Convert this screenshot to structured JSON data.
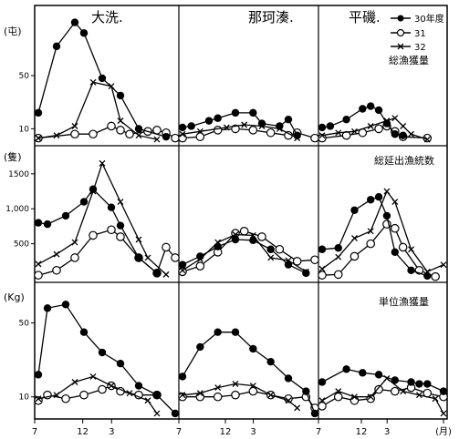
{
  "chart_data": {
    "type": "line",
    "legend": {
      "placement": "top-right",
      "entries": [
        {
          "marker": "filled-circle",
          "style": "solid",
          "label": "30年度"
        },
        {
          "marker": "open-circle",
          "style": "solid",
          "label": "31"
        },
        {
          "marker": "cross",
          "style": "solid",
          "label": "32"
        }
      ]
    },
    "regions": [
      "大洗.",
      "那珂湊.",
      "平磯."
    ],
    "x_ticks": [
      "7",
      "12",
      "3",
      "7",
      "12",
      "3",
      "7",
      "12",
      "3",
      "(月)"
    ],
    "panels": [
      {
        "unit": "(屯)",
        "title": "総漁獲量",
        "y_ticks": [
          {
            "v": 50,
            "label": "50"
          },
          {
            "v": 10,
            "label": "10"
          }
        ],
        "ylim": [
          0,
          100
        ],
        "segments": [
          {
            "s30": [
              [
                0,
                22
              ],
              [
                2,
                72
              ],
              [
                4,
                90
              ],
              [
                5,
                82
              ],
              [
                7,
                48
              ],
              [
                9,
                35
              ],
              [
                11,
                10
              ],
              [
                14,
                4
              ]
            ],
            "s31": [
              [
                0,
                3
              ],
              [
                4,
                6
              ],
              [
                6,
                6
              ],
              [
                8,
                12
              ],
              [
                9,
                9
              ],
              [
                10,
                6
              ],
              [
                12,
                8
              ],
              [
                13,
                9
              ],
              [
                14,
                7
              ],
              [
                15,
                3
              ]
            ],
            "s32": [
              [
                0,
                3
              ],
              [
                2,
                5
              ],
              [
                4,
                12
              ],
              [
                6,
                45
              ],
              [
                8,
                42
              ],
              [
                9,
                16
              ],
              [
                11,
                5
              ],
              [
                13,
                2
              ]
            ]
          },
          {
            "s30": [
              [
                0,
                11
              ],
              [
                1,
                12
              ],
              [
                3,
                16
              ],
              [
                4,
                18
              ],
              [
                6,
                22
              ],
              [
                8,
                22
              ],
              [
                9,
                14
              ],
              [
                11,
                12
              ],
              [
                12,
                17
              ],
              [
                13,
                5
              ]
            ],
            "s31": [
              [
                0,
                3
              ],
              [
                2,
                4
              ],
              [
                4,
                9
              ],
              [
                6,
                10
              ],
              [
                8,
                9
              ],
              [
                10,
                7
              ],
              [
                12,
                5
              ],
              [
                13,
                7
              ],
              [
                15,
                3
              ]
            ],
            "s32": [
              [
                0,
                6
              ],
              [
                2,
                8
              ],
              [
                5,
                11
              ],
              [
                7,
                13
              ],
              [
                9,
                12
              ],
              [
                11,
                10
              ],
              [
                13,
                3
              ]
            ]
          },
          {
            "s30": [
              [
                0,
                11
              ],
              [
                1,
                12
              ],
              [
                3,
                17
              ],
              [
                5,
                25
              ],
              [
                6,
                27
              ],
              [
                7,
                24
              ],
              [
                8,
                14
              ],
              [
                9,
                6
              ],
              [
                10,
                5
              ]
            ],
            "s31": [
              [
                0,
                3
              ],
              [
                3,
                5
              ],
              [
                5,
                7
              ],
              [
                7,
                10
              ],
              [
                8,
                12
              ],
              [
                9,
                8
              ],
              [
                10,
                4
              ],
              [
                13,
                3
              ]
            ],
            "s32": [
              [
                0,
                5
              ],
              [
                2,
                7
              ],
              [
                4,
                8
              ],
              [
                6,
                12
              ],
              [
                8,
                16
              ],
              [
                9,
                18
              ],
              [
                10,
                12
              ],
              [
                11,
                6
              ],
              [
                13,
                2
              ]
            ]
          }
        ]
      },
      {
        "unit": "(隻)",
        "title": "総延出漁統数",
        "y_ticks": [
          {
            "v": 1500,
            "label": "1500"
          },
          {
            "v": 1000,
            "label": "1,000"
          },
          {
            "v": 500,
            "label": "500"
          }
        ],
        "ylim": [
          0,
          1850
        ],
        "segments": [
          {
            "s30": [
              [
                0,
                800
              ],
              [
                1,
                780
              ],
              [
                3,
                900
              ],
              [
                5,
                1100
              ],
              [
                6,
                1280
              ],
              [
                8,
                1020
              ],
              [
                9,
                760
              ],
              [
                11,
                300
              ],
              [
                13,
                80
              ]
            ],
            "s31": [
              [
                0,
                50
              ],
              [
                2,
                120
              ],
              [
                4,
                300
              ],
              [
                6,
                620
              ],
              [
                8,
                700
              ],
              [
                9,
                600
              ],
              [
                11,
                300
              ],
              [
                13,
                80
              ],
              [
                14,
                450
              ],
              [
                15,
                300
              ]
            ],
            "s32": [
              [
                0,
                210
              ],
              [
                2,
                350
              ],
              [
                4,
                520
              ],
              [
                6,
                1250
              ],
              [
                7,
                1650
              ],
              [
                9,
                1100
              ],
              [
                11,
                560
              ],
              [
                12,
                300
              ],
              [
                14,
                60
              ]
            ]
          },
          {
            "s30": [
              [
                0,
                200
              ],
              [
                2,
                320
              ],
              [
                4,
                460
              ],
              [
                6,
                560
              ],
              [
                8,
                550
              ],
              [
                10,
                420
              ],
              [
                12,
                200
              ],
              [
                14,
                80
              ]
            ],
            "s31": [
              [
                0,
                100
              ],
              [
                2,
                180
              ],
              [
                4,
                380
              ],
              [
                6,
                650
              ],
              [
                7,
                680
              ],
              [
                9,
                600
              ],
              [
                11,
                420
              ],
              [
                13,
                250
              ],
              [
                15,
                270
              ]
            ],
            "s32": [
              [
                0,
                120
              ],
              [
                2,
                280
              ],
              [
                4,
                520
              ],
              [
                6,
                630
              ],
              [
                8,
                620
              ],
              [
                10,
                300
              ],
              [
                12,
                260
              ],
              [
                14,
                100
              ]
            ]
          },
          {
            "s30": [
              [
                0,
                420
              ],
              [
                2,
                440
              ],
              [
                4,
                980
              ],
              [
                6,
                1130
              ],
              [
                7,
                1170
              ],
              [
                8,
                900
              ],
              [
                9,
                380
              ],
              [
                11,
                120
              ],
              [
                13,
                40
              ]
            ],
            "s31": [
              [
                0,
                50
              ],
              [
                2,
                60
              ],
              [
                4,
                320
              ],
              [
                6,
                500
              ],
              [
                8,
                780
              ],
              [
                9,
                720
              ],
              [
                10,
                450
              ],
              [
                12,
                120
              ],
              [
                14,
                30
              ]
            ],
            "s32": [
              [
                0,
                140
              ],
              [
                2,
                310
              ],
              [
                4,
                580
              ],
              [
                6,
                680
              ],
              [
                8,
                1250
              ],
              [
                9,
                1100
              ],
              [
                11,
                420
              ],
              [
                13,
                100
              ],
              [
                15,
                200
              ]
            ]
          }
        ]
      },
      {
        "unit": "(Kg)",
        "title": "単位漁獲量",
        "y_ticks": [
          {
            "v": 50,
            "label": "50"
          },
          {
            "v": 10,
            "label": "10"
          }
        ],
        "ylim": [
          0,
          70
        ],
        "segments": [
          {
            "s30": [
              [
                0,
                22
              ],
              [
                1,
                58
              ],
              [
                3,
                60
              ],
              [
                5,
                45
              ],
              [
                7,
                34
              ],
              [
                9,
                28
              ],
              [
                11,
                16
              ],
              [
                13,
                11
              ],
              [
                15,
                1
              ]
            ],
            "s31": [
              [
                0,
                8
              ],
              [
                1,
                11
              ],
              [
                3,
                9
              ],
              [
                5,
                11
              ],
              [
                7,
                14
              ],
              [
                8,
                16
              ],
              [
                9,
                13
              ],
              [
                11,
                11
              ],
              [
                13,
                11
              ]
            ],
            "s32": [
              [
                0,
                9
              ],
              [
                2,
                11
              ],
              [
                4,
                18
              ],
              [
                6,
                21
              ],
              [
                8,
                16
              ],
              [
                10,
                12
              ],
              [
                12,
                8
              ],
              [
                13,
                1
              ]
            ]
          },
          {
            "s30": [
              [
                0,
                21
              ],
              [
                2,
                37
              ],
              [
                4,
                45
              ],
              [
                6,
                45
              ],
              [
                8,
                36
              ],
              [
                10,
                29
              ],
              [
                12,
                20
              ],
              [
                14,
                13
              ],
              [
                15,
                1
              ]
            ],
            "s31": [
              [
                0,
                10
              ],
              [
                2,
                10
              ],
              [
                4,
                10
              ],
              [
                6,
                11
              ],
              [
                8,
                13
              ],
              [
                10,
                11
              ],
              [
                12,
                9
              ],
              [
                14,
                10
              ],
              [
                15,
                4
              ]
            ],
            "s32": [
              [
                0,
                11
              ],
              [
                2,
                12
              ],
              [
                4,
                15
              ],
              [
                6,
                17
              ],
              [
                8,
                16
              ],
              [
                10,
                11
              ],
              [
                12,
                8
              ],
              [
                13,
                4
              ]
            ]
          },
          {
            "s30": [
              [
                0,
                18
              ],
              [
                3,
                25
              ],
              [
                5,
                23
              ],
              [
                7,
                22
              ],
              [
                9,
                19
              ],
              [
                11,
                18
              ],
              [
                12,
                17
              ],
              [
                13,
                17
              ],
              [
                15,
                13
              ]
            ],
            "s31": [
              [
                0,
                5
              ],
              [
                2,
                10
              ],
              [
                4,
                8
              ],
              [
                6,
                9
              ],
              [
                7,
                14
              ],
              [
                9,
                13
              ],
              [
                11,
                15
              ],
              [
                13,
                12
              ],
              [
                15,
                10
              ]
            ],
            "s32": [
              [
                0,
                8
              ],
              [
                2,
                13
              ],
              [
                4,
                10
              ],
              [
                6,
                10
              ],
              [
                8,
                20
              ],
              [
                10,
                13
              ],
              [
                12,
                11
              ],
              [
                14,
                9
              ],
              [
                15,
                1
              ]
            ]
          }
        ]
      }
    ]
  }
}
